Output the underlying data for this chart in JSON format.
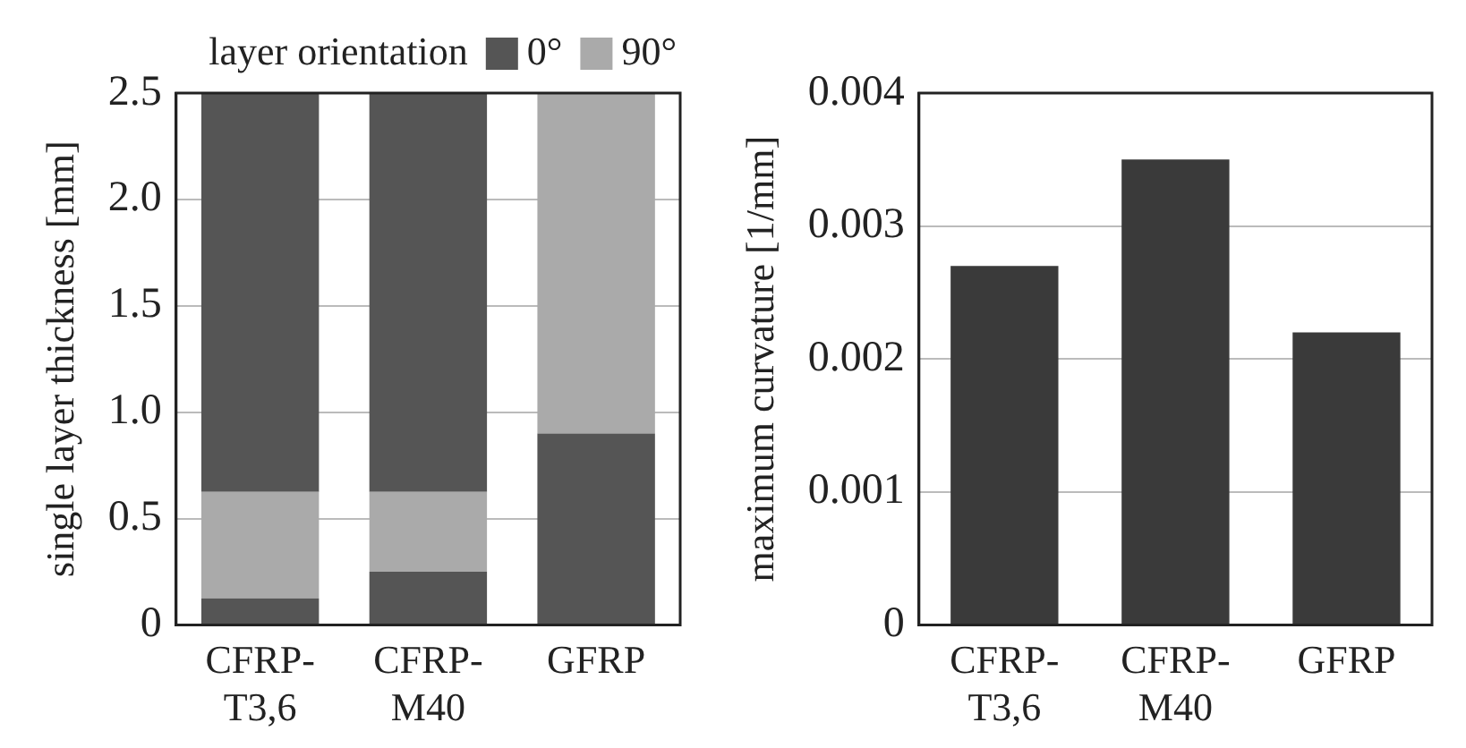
{
  "chart_data": [
    {
      "type": "bar",
      "stacked": true,
      "ylabel": "single layer thickness [mm]",
      "legend_title": "layer orientation",
      "legend": "top right",
      "grid": "y",
      "categories": [
        "CFRP-T3,6",
        "CFRP-M40",
        "GFRP"
      ],
      "series": [
        {
          "name": "0°",
          "color": "#555555",
          "values": [
            0.125,
            0.25,
            0.9
          ]
        },
        {
          "name": "90°",
          "color": "#aaaaaa",
          "values": [
            0.5,
            0.375,
            1.6
          ]
        },
        {
          "color": "#555555",
          "values": [
            1.875,
            1.875,
            0
          ]
        }
      ],
      "ylim": [
        0,
        2.5
      ],
      "yticks": [
        0,
        {
          "value": 0.5,
          "label": "0.5"
        },
        {
          "value": 1,
          "label": "1.0"
        },
        {
          "value": 1.5,
          "label": "1.5"
        },
        {
          "value": 2,
          "label": "2.0"
        },
        {
          "value": 2.5,
          "label": "2.5"
        }
      ]
    },
    {
      "type": "bar",
      "ylabel": "maximum curvature [1/mm]",
      "grid": "y",
      "categories": [
        "CFRP-T3,6",
        "CFRP-M40",
        "GFRP"
      ],
      "series": [
        {
          "color": "#3a3a3a",
          "values": [
            0.0027,
            0.0035,
            0.0022
          ]
        }
      ],
      "ylim": [
        0,
        0.004
      ],
      "yticks": [
        0,
        0.001,
        0.002,
        0.003,
        0.004
      ]
    }
  ]
}
